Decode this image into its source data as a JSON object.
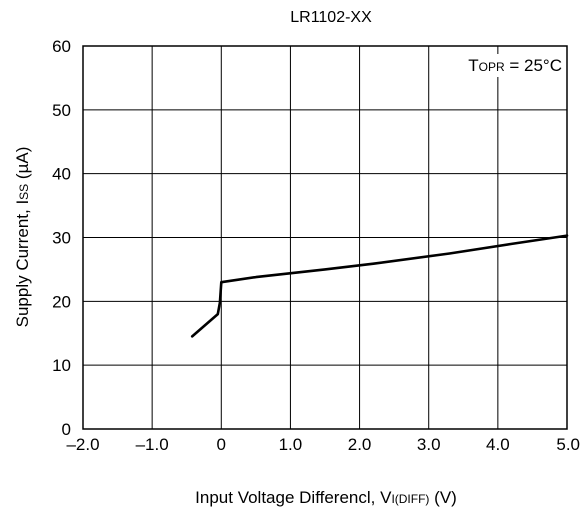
{
  "chart_data": {
    "type": "line",
    "title": "LR1102-XX",
    "xlabel_main": "Input Voltage Differencl, V",
    "xlabel_sub": "I(DIFF)",
    "xlabel_unit": " (V)",
    "ylabel_main": "Supply Current, I",
    "ylabel_sub": "SS",
    "ylabel_unit": " (µA)",
    "annotation": {
      "prefix": "T",
      "sub": "OPR",
      "rest": " = 25°C"
    },
    "xlim": [
      -2.0,
      5.0
    ],
    "ylim": [
      0,
      60
    ],
    "x_ticks": [
      -2.0,
      -1.0,
      0,
      1.0,
      2.0,
      3.0,
      4.0,
      5.0
    ],
    "x_tick_labels": [
      "–2.0",
      "–1.0",
      "0",
      "1.0",
      "2.0",
      "3.0",
      "4.0",
      "5.0"
    ],
    "y_ticks": [
      0,
      10,
      20,
      30,
      40,
      50,
      60
    ],
    "y_tick_labels": [
      "0",
      "10",
      "20",
      "30",
      "40",
      "50",
      "60"
    ],
    "grid": true,
    "line_color": "#000000",
    "series": [
      {
        "x": [
          -0.42,
          -0.05,
          -0.02,
          0.0,
          0.5,
          1.5,
          2.2,
          3.3,
          4.2,
          5.0
        ],
        "y": [
          14.5,
          18.0,
          19.8,
          23.0,
          23.8,
          25.0,
          25.9,
          27.5,
          29.0,
          30.3
        ]
      }
    ]
  }
}
